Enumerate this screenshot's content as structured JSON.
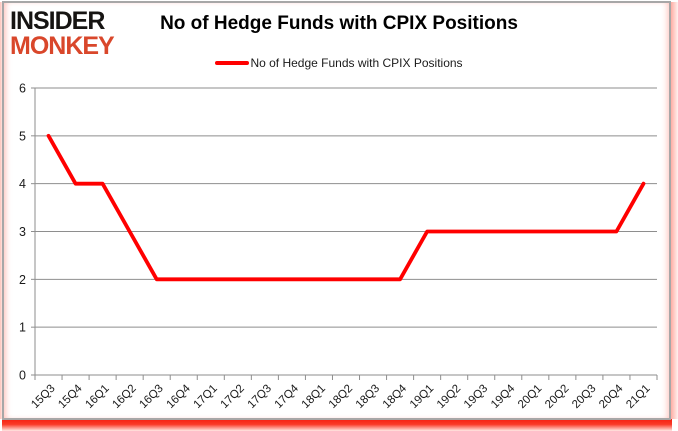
{
  "logo": {
    "line1": "INSIDER",
    "line2": "MONKEY",
    "line1_color": "#161412",
    "line2_color": "#d9472b"
  },
  "header": {
    "title": "No of Hedge Funds with CPIX Positions"
  },
  "legend": {
    "label": "No of Hedge Funds with CPIX Positions",
    "line_color": "#ff0000"
  },
  "chart_data": {
    "type": "line",
    "title": "No of Hedge Funds with CPIX Positions",
    "categories": [
      "15Q3",
      "15Q4",
      "16Q1",
      "16Q2",
      "16Q3",
      "16Q4",
      "17Q1",
      "17Q2",
      "17Q3",
      "17Q4",
      "18Q1",
      "18Q2",
      "18Q3",
      "18Q4",
      "19Q1",
      "19Q2",
      "19Q3",
      "19Q4",
      "20Q1",
      "20Q2",
      "20Q3",
      "20Q4",
      "21Q1"
    ],
    "series": [
      {
        "name": "No of Hedge Funds with CPIX Positions",
        "color": "#ff0000",
        "values": [
          5,
          4,
          4,
          3,
          2,
          2,
          2,
          2,
          2,
          2,
          2,
          2,
          2,
          2,
          3,
          3,
          3,
          3,
          3,
          3,
          3,
          3,
          4
        ]
      }
    ],
    "xlabel": "",
    "ylabel": "",
    "ylim": [
      0,
      6
    ],
    "yticks": [
      0,
      1,
      2,
      3,
      4,
      5,
      6
    ],
    "grid": true,
    "legend_position": "top",
    "gridline_color": "#8e8e8e",
    "axis_color": "#8e8e8e",
    "tick_label_color": "#1a1a1a"
  }
}
